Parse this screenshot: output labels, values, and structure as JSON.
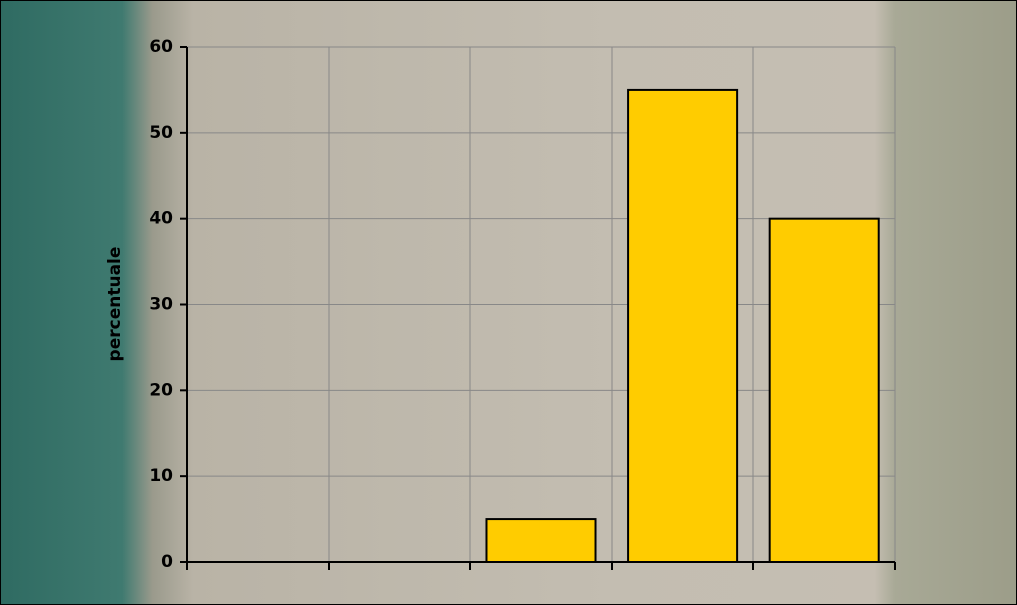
{
  "chart_data": {
    "type": "bar",
    "y_label": "percentuale",
    "categories": [
      null,
      null,
      null,
      null,
      null
    ],
    "values": [
      0,
      0,
      5,
      55,
      40
    ],
    "color": "#ffcc00",
    "ylim": [
      0,
      60
    ],
    "yticks": [
      0,
      10,
      20,
      30,
      40,
      50,
      60
    ],
    "grid": true
  }
}
